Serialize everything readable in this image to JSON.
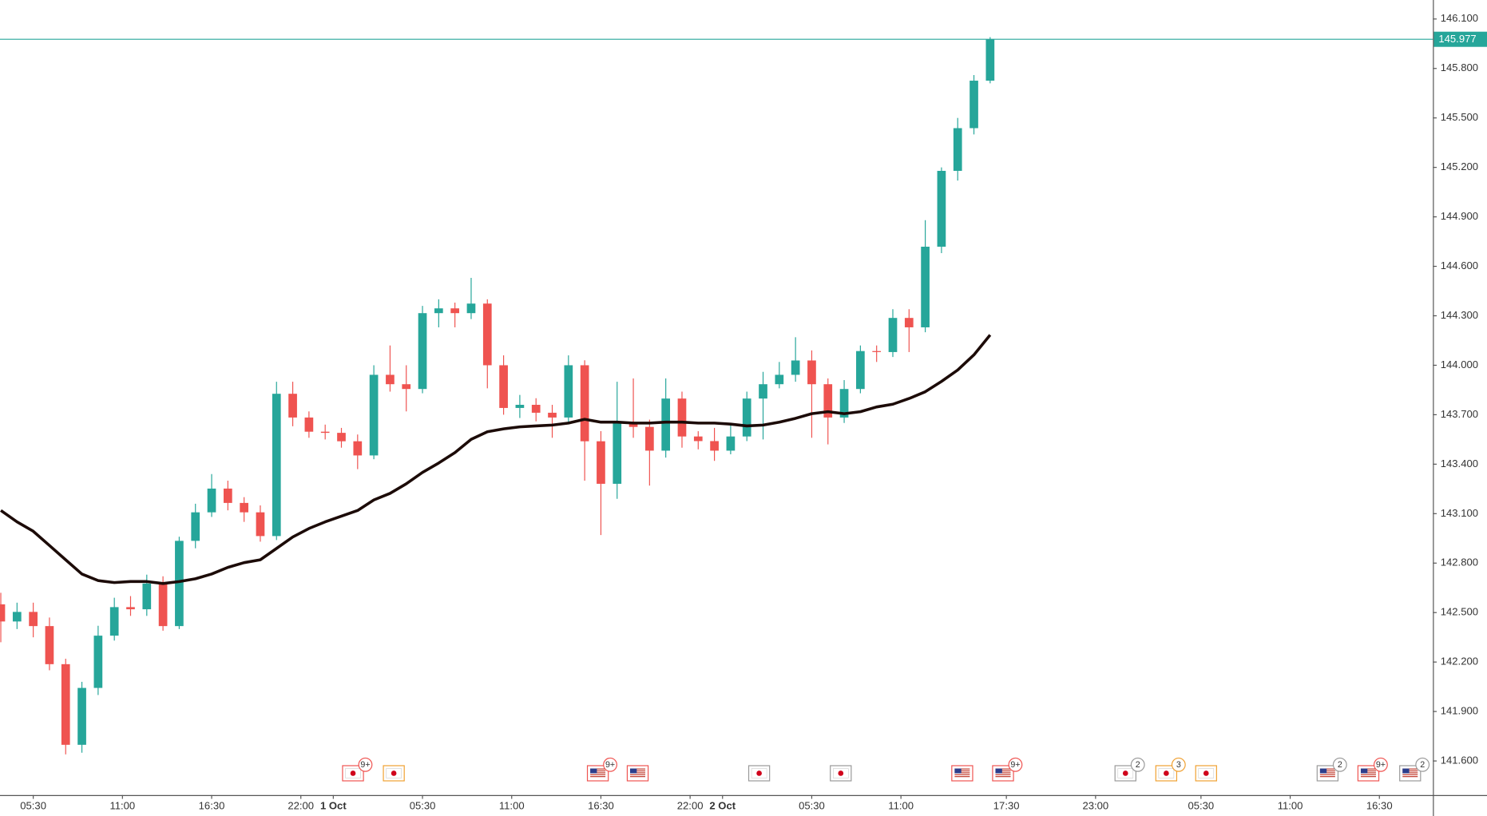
{
  "chart_data": {
    "type": "candlestick",
    "x": [
      -2,
      -1,
      0,
      1,
      2,
      3,
      4,
      5,
      6,
      7,
      8,
      9,
      10,
      11,
      12,
      13,
      14,
      15,
      16,
      17,
      18,
      19,
      20,
      21,
      22,
      23,
      24,
      25,
      26,
      27,
      28,
      29,
      30,
      31,
      32,
      33,
      34,
      35,
      36,
      37,
      38,
      39,
      40,
      41,
      42,
      43,
      44,
      45,
      46,
      47,
      48,
      49,
      50,
      51,
      52,
      53,
      54,
      55,
      56,
      57,
      58,
      59
    ],
    "open": [
      142.55,
      142.446,
      142.504,
      142.418,
      142.187,
      141.698,
      142.043,
      142.36,
      142.533,
      142.52,
      142.676,
      142.418,
      142.935,
      143.108,
      143.252,
      143.165,
      143.108,
      142.964,
      143.827,
      143.683,
      143.597,
      143.59,
      143.539,
      143.453,
      143.942,
      143.885,
      143.856,
      144.316,
      144.345,
      144.316,
      144.374,
      144.0,
      143.741,
      143.76,
      143.712,
      143.683,
      144.0,
      143.539,
      143.281,
      143.655,
      143.626,
      143.482,
      143.798,
      143.568,
      143.54,
      143.482,
      143.568,
      143.798,
      143.885,
      143.942,
      144.029,
      143.885,
      143.683,
      143.856,
      144.086,
      144.08,
      144.287,
      144.23,
      144.719,
      145.179,
      145.438,
      145.726
    ],
    "high": [
      142.62,
      142.56,
      142.56,
      142.47,
      142.22,
      142.08,
      142.42,
      142.59,
      142.6,
      142.73,
      142.72,
      142.96,
      143.16,
      143.34,
      143.3,
      143.2,
      143.15,
      143.9,
      143.9,
      143.72,
      143.64,
      143.62,
      143.58,
      144.0,
      144.12,
      144.0,
      144.36,
      144.4,
      144.38,
      144.53,
      144.4,
      144.06,
      143.82,
      143.8,
      143.76,
      144.06,
      144.03,
      143.6,
      143.9,
      143.92,
      143.67,
      143.92,
      143.84,
      143.6,
      143.62,
      143.65,
      143.84,
      143.96,
      144.02,
      144.17,
      144.09,
      143.92,
      143.91,
      144.12,
      144.12,
      144.34,
      144.34,
      144.88,
      145.2,
      145.5,
      145.76,
      145.99
    ],
    "low": [
      142.32,
      142.4,
      142.35,
      142.15,
      141.64,
      141.65,
      142.0,
      142.33,
      142.48,
      142.48,
      142.39,
      142.4,
      142.89,
      143.08,
      143.12,
      143.05,
      142.93,
      142.94,
      143.63,
      143.56,
      143.55,
      143.5,
      143.37,
      143.43,
      143.84,
      143.72,
      143.83,
      144.23,
      144.23,
      144.28,
      143.86,
      143.7,
      143.68,
      143.66,
      143.56,
      143.65,
      143.3,
      142.97,
      143.19,
      143.56,
      143.27,
      143.44,
      143.5,
      143.49,
      143.42,
      143.46,
      143.54,
      143.55,
      143.86,
      143.9,
      143.56,
      143.52,
      143.65,
      143.83,
      144.02,
      144.05,
      144.08,
      144.2,
      144.68,
      145.12,
      145.4,
      145.71
    ],
    "close": [
      142.446,
      142.504,
      142.418,
      142.187,
      141.698,
      142.043,
      142.36,
      142.533,
      142.52,
      142.676,
      142.418,
      142.935,
      143.108,
      143.252,
      143.165,
      143.108,
      142.964,
      143.827,
      143.683,
      143.597,
      143.59,
      143.539,
      143.453,
      143.942,
      143.885,
      143.856,
      144.316,
      144.345,
      144.316,
      144.374,
      144.0,
      143.741,
      143.76,
      143.712,
      143.683,
      144.0,
      143.539,
      143.281,
      143.655,
      143.626,
      143.482,
      143.798,
      143.568,
      143.54,
      143.482,
      143.568,
      143.798,
      143.885,
      143.942,
      144.029,
      143.885,
      143.683,
      143.856,
      144.086,
      144.08,
      144.287,
      144.23,
      144.719,
      145.179,
      145.438,
      145.726,
      145.977
    ],
    "up_color": "#26a69a",
    "down_color": "#ef5350",
    "moving_average": {
      "color": "#1c0b08",
      "values": [
        143.119,
        143.05,
        142.993,
        142.907,
        142.82,
        142.734,
        142.694,
        142.682,
        142.688,
        142.688,
        142.676,
        142.688,
        142.705,
        142.734,
        142.774,
        142.803,
        142.82,
        142.889,
        142.958,
        143.01,
        143.05,
        143.085,
        143.119,
        143.183,
        143.223,
        143.281,
        143.35,
        143.407,
        143.47,
        143.551,
        143.597,
        143.614,
        143.626,
        143.632,
        143.637,
        143.649,
        143.672,
        143.655,
        143.655,
        143.649,
        143.649,
        143.655,
        143.655,
        143.649,
        143.649,
        143.643,
        143.632,
        143.637,
        143.655,
        143.678,
        143.706,
        143.718,
        143.706,
        143.718,
        143.747,
        143.764,
        143.798,
        143.839,
        143.902,
        143.971,
        144.063,
        144.184
      ]
    },
    "last_price": {
      "value": 145.977,
      "label": "145.977",
      "color": "#26a69a"
    },
    "xlim": [
      -2.05,
      86.3
    ],
    "ylim": [
      141.393,
      146.215
    ],
    "xticks": [
      {
        "value": 0,
        "label": "05:30"
      },
      {
        "value": 5.5,
        "label": "11:00"
      },
      {
        "value": 11,
        "label": "16:30"
      },
      {
        "value": 16.5,
        "label": "22:00"
      },
      {
        "value": 18.5,
        "label": "1 Oct"
      },
      {
        "value": 24,
        "label": "05:30"
      },
      {
        "value": 29.5,
        "label": "11:00"
      },
      {
        "value": 35,
        "label": "16:30"
      },
      {
        "value": 40.5,
        "label": "22:00"
      },
      {
        "value": 42.5,
        "label": "2 Oct"
      },
      {
        "value": 48,
        "label": "05:30"
      },
      {
        "value": 53.5,
        "label": "11:00"
      },
      {
        "value": 60,
        "label": "17:30"
      },
      {
        "value": 65.5,
        "label": "23:00"
      },
      {
        "value": 72,
        "label": "05:30"
      },
      {
        "value": 77.5,
        "label": "11:00"
      },
      {
        "value": 83,
        "label": "16:30"
      }
    ],
    "yticks": [
      {
        "value": 141.6,
        "label": "141.600"
      },
      {
        "value": 141.9,
        "label": "141.900"
      },
      {
        "value": 142.2,
        "label": "142.200"
      },
      {
        "value": 142.5,
        "label": "142.500"
      },
      {
        "value": 142.8,
        "label": "142.800"
      },
      {
        "value": 143.1,
        "label": "143.100"
      },
      {
        "value": 143.4,
        "label": "143.400"
      },
      {
        "value": 143.7,
        "label": "143.700"
      },
      {
        "value": 144.0,
        "label": "144.000"
      },
      {
        "value": 144.3,
        "label": "144.300"
      },
      {
        "value": 144.6,
        "label": "144.600"
      },
      {
        "value": 144.9,
        "label": "144.900"
      },
      {
        "value": 145.2,
        "label": "145.200"
      },
      {
        "value": 145.5,
        "label": "145.500"
      },
      {
        "value": 145.8,
        "label": "145.800"
      },
      {
        "value": 146.1,
        "label": "146.100"
      }
    ],
    "events": [
      {
        "flag": "jp",
        "border": "#ef5350",
        "badge": "9+"
      },
      {
        "flag": "jp",
        "border": "#f0a030"
      },
      {
        "flag": "us",
        "border": "#ef5350",
        "badge": "9+"
      },
      {
        "flag": "us",
        "border": "#ef5350"
      },
      {
        "flag": "jp",
        "border": "#999999"
      },
      {
        "flag": "jp",
        "border": "#999999"
      },
      {
        "flag": "us",
        "border": "#ef5350"
      },
      {
        "flag": "us",
        "border": "#ef5350",
        "badge": "9+"
      },
      {
        "flag": "jp",
        "border": "#999999",
        "badge": "2"
      },
      {
        "flag": "jp",
        "border": "#f0a030",
        "badge": "3"
      },
      {
        "flag": "jp",
        "border": "#f0a030"
      },
      {
        "flag": "us",
        "border": "#999999",
        "badge": "2"
      },
      {
        "flag": "us",
        "border": "#ef5350",
        "badge": "9+"
      },
      {
        "flag": "us",
        "border": "#999999",
        "badge": "2"
      }
    ]
  }
}
